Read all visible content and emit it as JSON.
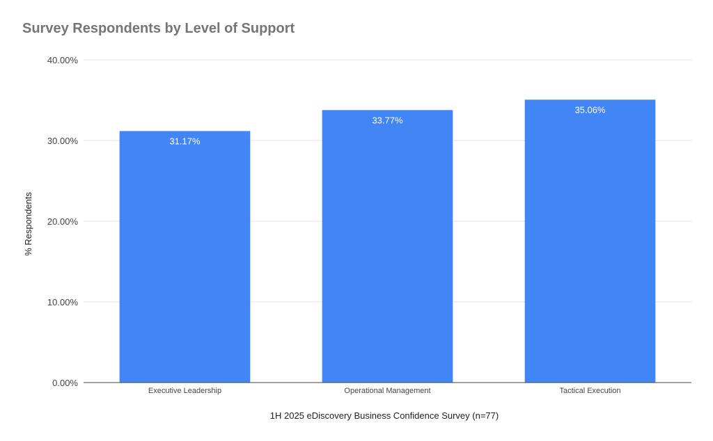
{
  "chart_data": {
    "type": "bar",
    "title": "Survey Respondents by Level of Support",
    "xlabel": "1H 2025 eDiscovery Business Confidence Survey (n=77)",
    "ylabel": "% Respondents",
    "categories": [
      "Executive Leadership",
      "Operational Management",
      "Tactical Execution"
    ],
    "values": [
      31.17,
      33.77,
      35.06
    ],
    "data_labels": [
      "31.17%",
      "33.77%",
      "35.06%"
    ],
    "ylim": [
      0,
      40
    ],
    "yticks": [
      0,
      10,
      20,
      30,
      40
    ],
    "ytick_labels": [
      "0.00%",
      "10.00%",
      "20.00%",
      "30.00%",
      "40.00%"
    ],
    "grid": true,
    "legend": "none",
    "colors": {
      "bar": "#4285f4",
      "grid": "#e0e0e0",
      "axis": "#444444",
      "title": "#757575"
    }
  }
}
